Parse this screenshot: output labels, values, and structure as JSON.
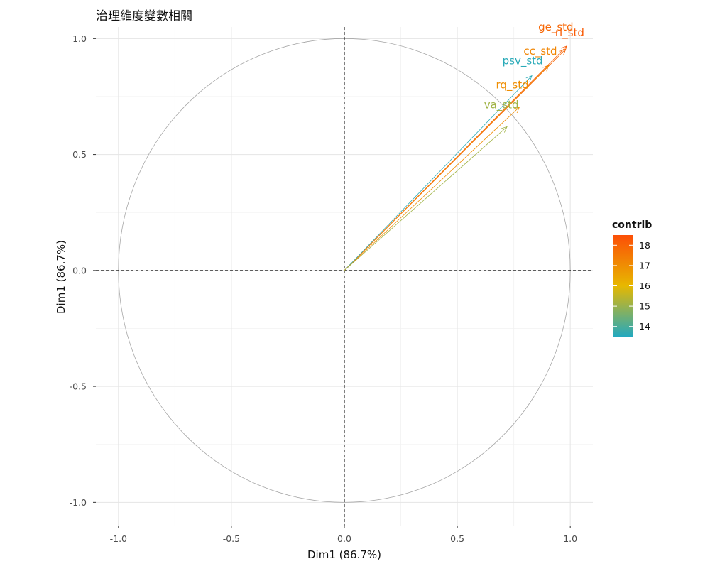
{
  "chart_data": {
    "type": "scatter",
    "subtype": "pca-variable-correlation-circle",
    "title": "治理維度變數相關",
    "xlabel": "Dim1 (86.7%)",
    "ylabel": "Dim1 (86.7%)",
    "xlim": [
      -1.1,
      1.1
    ],
    "ylim": [
      -1.1,
      1.05
    ],
    "x_ticks": [
      -1.0,
      -0.5,
      0.0,
      0.5,
      1.0
    ],
    "y_ticks": [
      -1.0,
      -0.5,
      0.0,
      0.5,
      1.0
    ],
    "x_tick_labels": [
      "-1.0",
      "-0.5",
      "0.0",
      "0.5",
      "1.0"
    ],
    "y_tick_labels": [
      "-1.0",
      "-0.5",
      "0.0",
      "0.5",
      "1.0"
    ],
    "grid": true,
    "unit_circle": true,
    "reference_lines": [
      0,
      0
    ],
    "variables": [
      {
        "name": "rl_std",
        "x": 0.985,
        "y": 0.968,
        "contrib": 18.2
      },
      {
        "name": "ge_std",
        "x": 0.98,
        "y": 0.955,
        "contrib": 17.9
      },
      {
        "name": "cc_std",
        "x": 0.905,
        "y": 0.885,
        "contrib": 17.2
      },
      {
        "name": "psv_std",
        "x": 0.83,
        "y": 0.84,
        "contrib": 13.6
      },
      {
        "name": "rq_std",
        "x": 0.775,
        "y": 0.705,
        "contrib": 17.0
      },
      {
        "name": "va_std",
        "x": 0.72,
        "y": 0.62,
        "contrib": 15.1
      }
    ],
    "legend": {
      "title": "contrib",
      "placement": "right",
      "ticks": [
        14,
        15,
        16,
        17,
        18
      ],
      "tick_labels": [
        "14",
        "15",
        "16",
        "17",
        "18"
      ],
      "range": [
        13.5,
        18.5
      ],
      "gradient_colors": [
        "#22A9C0",
        "#E7B800",
        "#FC4E07"
      ]
    }
  }
}
